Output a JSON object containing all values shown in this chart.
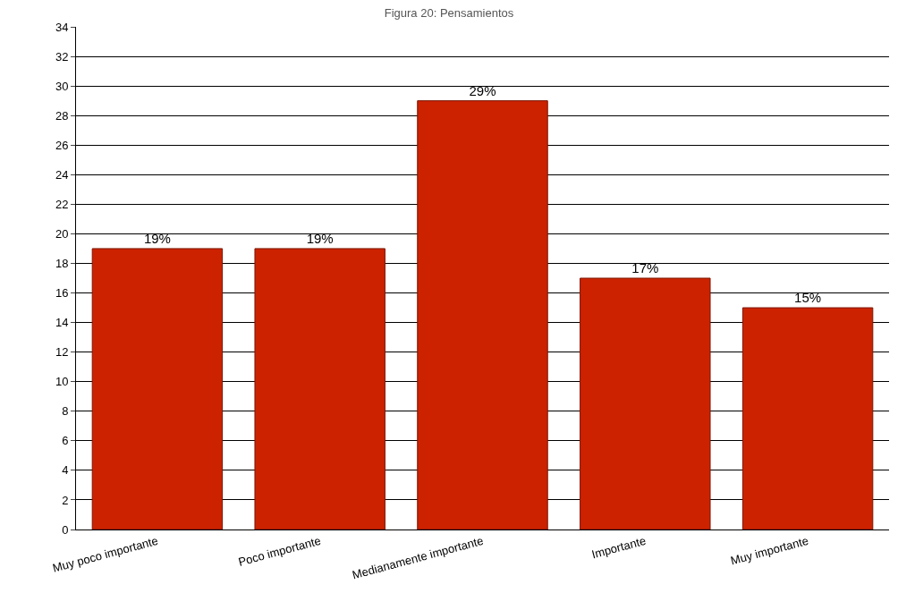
{
  "chart_data": {
    "type": "bar",
    "title": "Figura 20: Pensamientos",
    "categories": [
      "Muy poco importante",
      "Poco importante",
      "Medianamente importante",
      "Importante",
      "Muy importante"
    ],
    "values": [
      19,
      19,
      29,
      17,
      15
    ],
    "value_labels": [
      "19%",
      "19%",
      "29%",
      "17%",
      "15%"
    ],
    "color": "#cc2200",
    "ylim": [
      0,
      34
    ],
    "yticks": [
      0,
      2,
      4,
      6,
      8,
      10,
      12,
      14,
      16,
      18,
      20,
      22,
      24,
      26,
      28,
      30,
      32,
      34
    ],
    "grid": "y",
    "legend": false
  }
}
